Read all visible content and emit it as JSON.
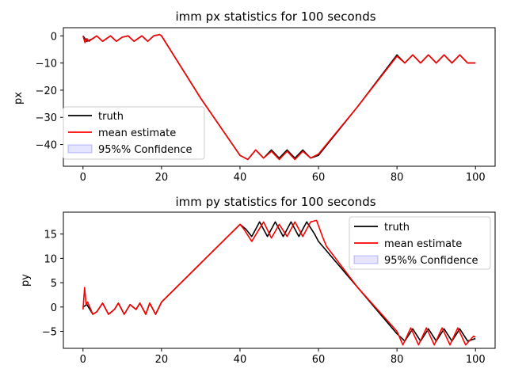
{
  "chart_data": [
    {
      "type": "line",
      "title": "imm px statistics for 100 seconds",
      "xlabel": "",
      "ylabel": "px",
      "xlim": [
        -5,
        105
      ],
      "ylim": [
        -48,
        3
      ],
      "xticks": [
        0,
        20,
        40,
        60,
        80,
        100
      ],
      "yticks": [
        0,
        -10,
        -20,
        -30,
        -40
      ],
      "ytick_labels": [
        "0",
        "−10",
        "−20",
        "−30",
        "−40"
      ],
      "legend_position": "lower-left",
      "legend": [
        "truth",
        "mean estimate",
        "95%% Confidence"
      ],
      "series": [
        {
          "name": "truth",
          "color": "#000000",
          "points": [
            [
              0,
              0
            ],
            [
              1,
              -2
            ],
            [
              2.5,
              -1
            ],
            [
              3.5,
              0
            ],
            [
              5,
              -2
            ],
            [
              7,
              0
            ],
            [
              8.5,
              -2
            ],
            [
              10,
              -0.5
            ],
            [
              11.5,
              0
            ],
            [
              13,
              -2
            ],
            [
              15,
              0
            ],
            [
              16.5,
              -2
            ],
            [
              18,
              0
            ],
            [
              19.5,
              0.5
            ],
            [
              20,
              0
            ],
            [
              30,
              -23
            ],
            [
              40,
              -44
            ],
            [
              42,
              -45.5
            ],
            [
              44,
              -42
            ],
            [
              46,
              -45
            ],
            [
              48,
              -42
            ],
            [
              50,
              -45
            ],
            [
              52,
              -42
            ],
            [
              54,
              -45
            ],
            [
              56,
              -42
            ],
            [
              58,
              -45
            ],
            [
              60,
              -44
            ],
            [
              70,
              -26
            ],
            [
              80,
              -7
            ],
            [
              82,
              -10
            ],
            [
              84,
              -7
            ],
            [
              86,
              -10
            ],
            [
              88,
              -7
            ],
            [
              90,
              -10
            ],
            [
              92,
              -7
            ],
            [
              94,
              -10
            ],
            [
              96,
              -7
            ],
            [
              98,
              -10
            ],
            [
              100,
              -10
            ]
          ]
        },
        {
          "name": "mean estimate",
          "color": "#ff0000",
          "points": [
            [
              0,
              0
            ],
            [
              0.5,
              -2.5
            ],
            [
              1,
              -1
            ],
            [
              1.5,
              -2
            ],
            [
              2.5,
              -1
            ],
            [
              3.5,
              0
            ],
            [
              5,
              -2
            ],
            [
              7,
              0
            ],
            [
              8.5,
              -2
            ],
            [
              10,
              -0.5
            ],
            [
              11.5,
              0
            ],
            [
              13,
              -2
            ],
            [
              15,
              0
            ],
            [
              16.5,
              -2
            ],
            [
              18,
              0
            ],
            [
              19.5,
              0.5
            ],
            [
              20,
              0
            ],
            [
              30,
              -23
            ],
            [
              40,
              -44
            ],
            [
              42,
              -45.5
            ],
            [
              44,
              -42
            ],
            [
              46,
              -45
            ],
            [
              48,
              -42.5
            ],
            [
              50,
              -45.5
            ],
            [
              52,
              -42.5
            ],
            [
              54,
              -45.5
            ],
            [
              56,
              -42.5
            ],
            [
              58,
              -45
            ],
            [
              60,
              -43.5
            ],
            [
              70,
              -26
            ],
            [
              80,
              -7.5
            ],
            [
              82,
              -10
            ],
            [
              84,
              -7
            ],
            [
              86,
              -10
            ],
            [
              88,
              -7
            ],
            [
              90,
              -10
            ],
            [
              92,
              -7
            ],
            [
              94,
              -10
            ],
            [
              96,
              -7
            ],
            [
              98,
              -10
            ],
            [
              100,
              -10
            ]
          ]
        }
      ]
    },
    {
      "type": "line",
      "title": "imm py statistics for 100 seconds",
      "xlabel": "",
      "ylabel": "py",
      "xlim": [
        -5,
        105
      ],
      "ylim": [
        -8.5,
        19.5
      ],
      "xticks": [
        0,
        20,
        40,
        60,
        80,
        100
      ],
      "yticks": [
        15,
        10,
        5,
        0,
        -5
      ],
      "ytick_labels": [
        "15",
        "10",
        "5",
        "0",
        "−5"
      ],
      "legend_position": "upper-right",
      "legend": [
        "truth",
        "mean estimate",
        "95%% Confidence"
      ],
      "series": [
        {
          "name": "truth",
          "color": "#000000",
          "points": [
            [
              0,
              0
            ],
            [
              1,
              0.5
            ],
            [
              2.5,
              -1.5
            ],
            [
              3.5,
              -1
            ],
            [
              5,
              0.8
            ],
            [
              6.5,
              -1.5
            ],
            [
              8,
              -0.5
            ],
            [
              9,
              0.8
            ],
            [
              10.5,
              -1.5
            ],
            [
              12,
              0.5
            ],
            [
              13.5,
              -0.5
            ],
            [
              14.5,
              0.8
            ],
            [
              16,
              -1.5
            ],
            [
              17,
              0.8
            ],
            [
              18.5,
              -1.5
            ],
            [
              20,
              1
            ],
            [
              30,
              9
            ],
            [
              40,
              17
            ],
            [
              41.5,
              16
            ],
            [
              43,
              14.5
            ],
            [
              45,
              17.5
            ],
            [
              47,
              14.5
            ],
            [
              49,
              17.5
            ],
            [
              51,
              14.5
            ],
            [
              53,
              17.5
            ],
            [
              55,
              14.5
            ],
            [
              57,
              17.5
            ],
            [
              59,
              15
            ],
            [
              60,
              13.5
            ],
            [
              70,
              4
            ],
            [
              80,
              -5.5
            ],
            [
              82,
              -7
            ],
            [
              84,
              -4.5
            ],
            [
              86,
              -7
            ],
            [
              88,
              -4.5
            ],
            [
              90,
              -7
            ],
            [
              92,
              -4.5
            ],
            [
              94,
              -7
            ],
            [
              96,
              -4.5
            ],
            [
              98,
              -7
            ],
            [
              100,
              -6.5
            ]
          ]
        },
        {
          "name": "mean estimate",
          "color": "#ff0000",
          "points": [
            [
              0,
              -0.5
            ],
            [
              0.4,
              4
            ],
            [
              0.8,
              0.5
            ],
            [
              1.2,
              1
            ],
            [
              2.5,
              -1.5
            ],
            [
              3.5,
              -1
            ],
            [
              5,
              0.8
            ],
            [
              6.5,
              -1.5
            ],
            [
              8,
              -0.5
            ],
            [
              9,
              0.8
            ],
            [
              10.5,
              -1.5
            ],
            [
              12,
              0.5
            ],
            [
              13.5,
              -0.5
            ],
            [
              14.5,
              0.8
            ],
            [
              16,
              -1.5
            ],
            [
              17,
              0.8
            ],
            [
              18.5,
              -1.5
            ],
            [
              20,
              1
            ],
            [
              30,
              9
            ],
            [
              40,
              17
            ],
            [
              41,
              16
            ],
            [
              43,
              13.5
            ],
            [
              46,
              17.5
            ],
            [
              48,
              14.2
            ],
            [
              50,
              17
            ],
            [
              52,
              14.5
            ],
            [
              54,
              17.5
            ],
            [
              56,
              14.5
            ],
            [
              58,
              17.5
            ],
            [
              59.5,
              17.8
            ],
            [
              61,
              14.5
            ],
            [
              62,
              12.5
            ],
            [
              70,
              4
            ],
            [
              80,
              -5
            ],
            [
              81.5,
              -7.8
            ],
            [
              83.5,
              -4.3
            ],
            [
              85.5,
              -7.8
            ],
            [
              87.5,
              -4.3
            ],
            [
              89.5,
              -7.8
            ],
            [
              91.5,
              -4.3
            ],
            [
              93.5,
              -7.8
            ],
            [
              95.5,
              -4.3
            ],
            [
              97.5,
              -7.8
            ],
            [
              99.5,
              -6
            ],
            [
              100,
              -6.2
            ]
          ]
        }
      ]
    }
  ]
}
